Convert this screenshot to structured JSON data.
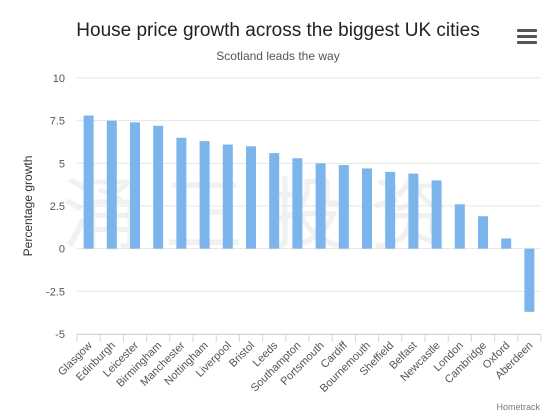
{
  "title": "House price growth across the biggest UK cities",
  "subtitle": "Scotland leads the way",
  "credits": "Hometrack",
  "watermark": "涌 正 投 资",
  "menu_icon": "hamburger-menu-icon",
  "colors": {
    "bar": "#7cb5ec",
    "grid": "#e6e6e6",
    "axis": "#ccd6eb"
  },
  "chart_data": {
    "type": "bar",
    "title": "House price growth across the biggest UK cities",
    "subtitle": "Scotland leads the way",
    "xlabel": "",
    "ylabel": "Percentage growth",
    "ylim": [
      -5,
      10
    ],
    "yticks": [
      10,
      7.5,
      5,
      2.5,
      0,
      -2.5,
      -5
    ],
    "ytick_labels": [
      "10",
      "7.5",
      "5",
      "2.5",
      "0",
      "-2.5",
      "-5"
    ],
    "grid": true,
    "legend": "none",
    "categories": [
      "Glasgow",
      "Edinburgh",
      "Leicester",
      "Birmingham",
      "Manchester",
      "Nottingham",
      "Liverpool",
      "Bristol",
      "Leeds",
      "Southampton",
      "Portsmouth",
      "Cardiff",
      "Bournemouth",
      "Sheffield",
      "Belfast",
      "Newcastle",
      "London",
      "Cambridge",
      "Oxford",
      "Aberdeen"
    ],
    "values": [
      7.8,
      7.5,
      7.4,
      7.2,
      6.5,
      6.3,
      6.1,
      6.0,
      5.6,
      5.3,
      5.0,
      4.9,
      4.7,
      4.5,
      4.4,
      4.0,
      2.6,
      1.9,
      0.6,
      -3.7
    ]
  }
}
